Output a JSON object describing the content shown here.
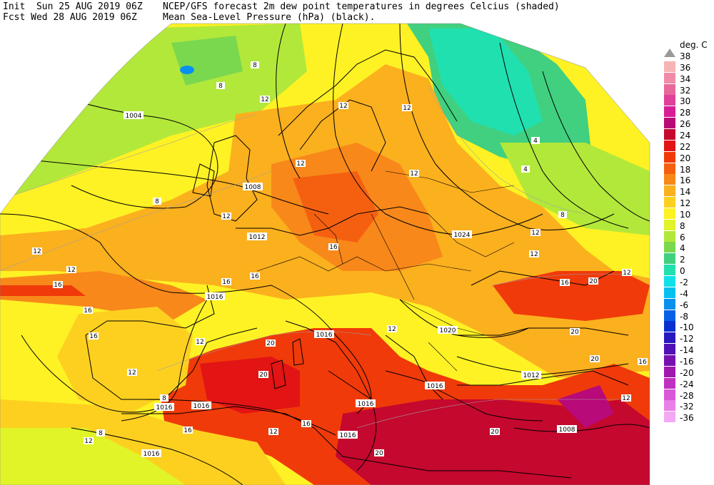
{
  "header": {
    "init_line": "Init  Sun 25 AUG 2019 06Z",
    "fcst_line": "Fcst Wed 28 AUG 2019 06Z",
    "title_line1": "NCEP/GFS forecast 2m dew point temperatures in degrees Celcius (shaded)",
    "title_line2": "Mean Sea-Level Pressure (hPa) (black)."
  },
  "legend": {
    "unit": "deg. C",
    "levels": [
      {
        "label": "38",
        "color": "#999999"
      },
      {
        "label": "36",
        "color": "#f7b4b4"
      },
      {
        "label": "34",
        "color": "#f08ca8"
      },
      {
        "label": "32",
        "color": "#e8689c"
      },
      {
        "label": "30",
        "color": "#e0409a"
      },
      {
        "label": "28",
        "color": "#d81e96"
      },
      {
        "label": "26",
        "color": "#b80a78"
      },
      {
        "label": "24",
        "color": "#c4082e"
      },
      {
        "label": "22",
        "color": "#e21414"
      },
      {
        "label": "20",
        "color": "#f03a0a"
      },
      {
        "label": "18",
        "color": "#f56010"
      },
      {
        "label": "16",
        "color": "#f8881a"
      },
      {
        "label": "14",
        "color": "#fbb01e"
      },
      {
        "label": "12",
        "color": "#fdd020"
      },
      {
        "label": "10",
        "color": "#fef224"
      },
      {
        "label": "8",
        "color": "#e0f428"
      },
      {
        "label": "6",
        "color": "#b2e83a"
      },
      {
        "label": "4",
        "color": "#7ad84e"
      },
      {
        "label": "2",
        "color": "#40d080"
      },
      {
        "label": "0",
        "color": "#20e0b0"
      },
      {
        "label": "-2",
        "color": "#10e0e8"
      },
      {
        "label": "-4",
        "color": "#08c0f0"
      },
      {
        "label": "-6",
        "color": "#0890f0"
      },
      {
        "label": "-8",
        "color": "#0860e8"
      },
      {
        "label": "-10",
        "color": "#0830d0"
      },
      {
        "label": "-12",
        "color": "#2818c0"
      },
      {
        "label": "-14",
        "color": "#5010b8"
      },
      {
        "label": "-16",
        "color": "#7810b0"
      },
      {
        "label": "-20",
        "color": "#a018b0"
      },
      {
        "label": "-24",
        "color": "#c030c0"
      },
      {
        "label": "-28",
        "color": "#d858d8"
      },
      {
        "label": "-32",
        "color": "#e880e8"
      },
      {
        "label": "-36",
        "color": "#f4a8f4"
      }
    ]
  },
  "isobar_labels": [
    "1004",
    "1008",
    "1012",
    "1016",
    "1016",
    "1016",
    "1016",
    "1016",
    "1016",
    "1016",
    "1016",
    "1020",
    "1024",
    "1012",
    "1008"
  ],
  "dewpoint_labels": [
    "8",
    "8",
    "8",
    "12",
    "12",
    "12",
    "4",
    "4",
    "8",
    "12",
    "12",
    "12",
    "16",
    "12",
    "12",
    "16",
    "12",
    "16",
    "16",
    "16",
    "12",
    "20",
    "12",
    "16",
    "20",
    "20",
    "12",
    "20",
    "16",
    "20",
    "12",
    "8",
    "12",
    "16",
    "20",
    "16",
    "12",
    "8",
    "12",
    "16",
    "12",
    "20"
  ]
}
